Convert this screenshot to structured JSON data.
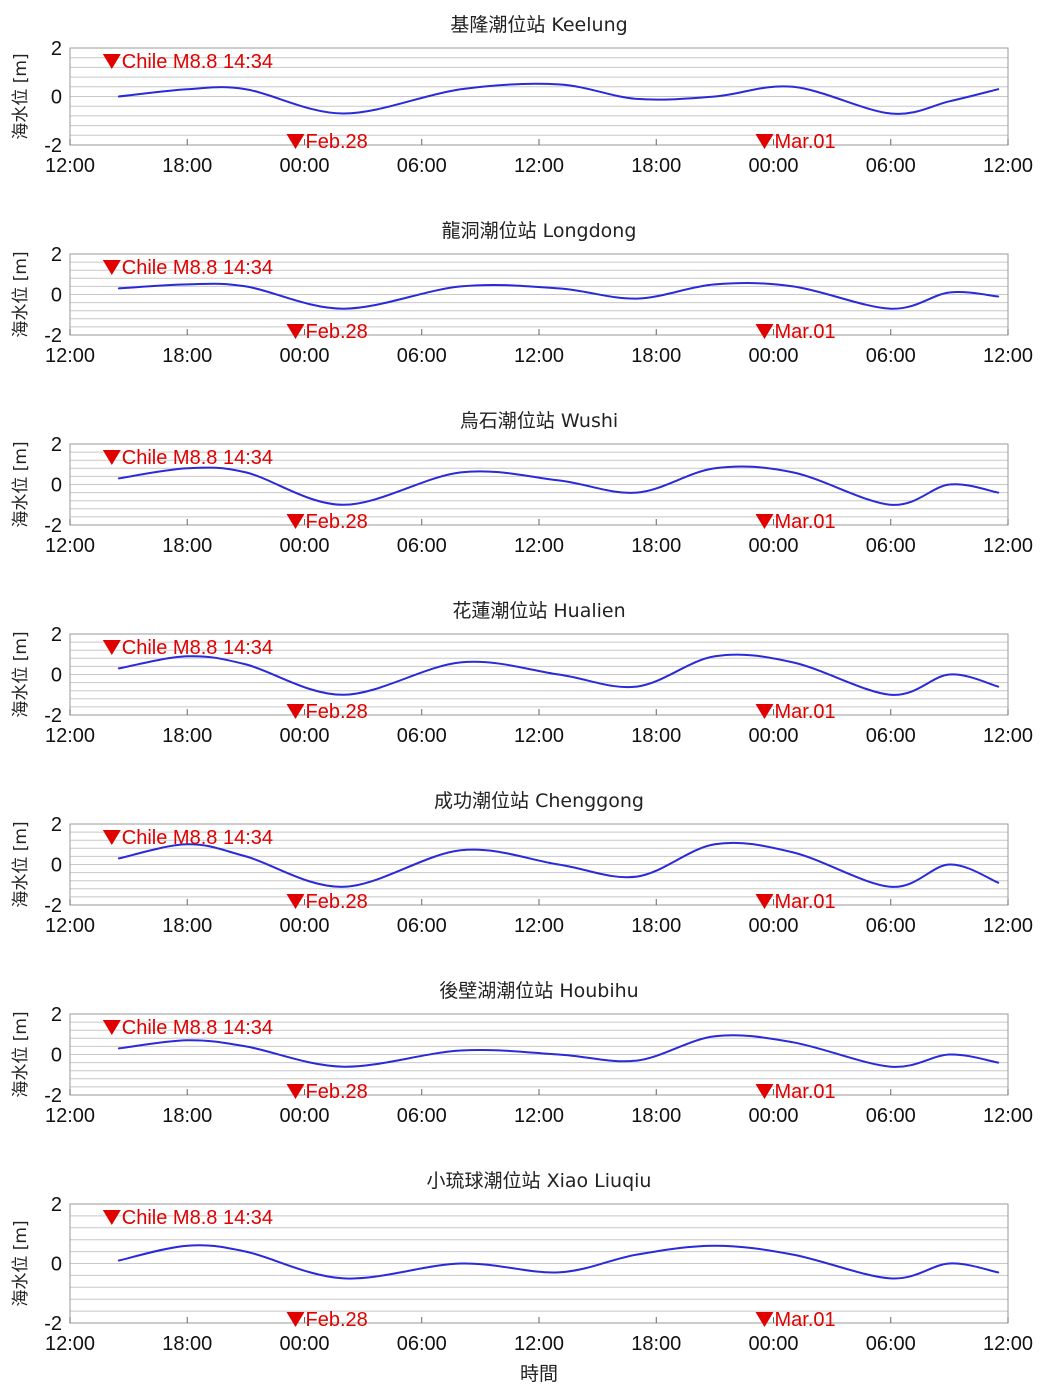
{
  "chart_data": {
    "type": "line",
    "x_tick_labels": [
      "12:00",
      "18:00",
      "00:00",
      "06:00",
      "12:00",
      "18:00",
      "00:00",
      "06:00",
      "12:00"
    ],
    "y_tick_labels": [
      "2",
      "0",
      "-2"
    ],
    "xlabel": "時間",
    "ylabel": "海水位 [m]",
    "ylim": [
      -2,
      2
    ],
    "xlim_hours": [
      0,
      48
    ],
    "grid": "horizontal",
    "line_color": "#2a2ad8",
    "annotation_color": "#e00000",
    "annotations": [
      {
        "text": "Chile M8.8 14:34",
        "hour": 2.6,
        "position": "top"
      },
      {
        "text": "Feb.28",
        "hour": 12.0,
        "position": "bottom"
      },
      {
        "text": "Mar.01",
        "hour": 36.0,
        "position": "bottom"
      }
    ],
    "panels": [
      {
        "title": "基隆潮位站 Keelung",
        "x": [
          2.5,
          6,
          9,
          14,
          20,
          25,
          29,
          33,
          37,
          42,
          45,
          47.5
        ],
        "y": [
          0.0,
          0.3,
          0.3,
          -0.7,
          0.3,
          0.5,
          -0.1,
          0.0,
          0.4,
          -0.7,
          -0.2,
          0.3
        ]
      },
      {
        "title": "龍洞潮位站 Longdong",
        "x": [
          2.5,
          6,
          9,
          14,
          20,
          25,
          29,
          33,
          37,
          42,
          45,
          47.5
        ],
        "y": [
          0.3,
          0.5,
          0.4,
          -0.7,
          0.4,
          0.3,
          -0.2,
          0.5,
          0.4,
          -0.7,
          0.1,
          -0.1
        ]
      },
      {
        "title": "烏石潮位站 Wushi",
        "x": [
          2.5,
          6,
          9,
          14,
          20,
          25,
          29,
          33,
          37,
          42,
          45,
          47.5
        ],
        "y": [
          0.3,
          0.8,
          0.6,
          -1.0,
          0.6,
          0.2,
          -0.4,
          0.8,
          0.6,
          -1.0,
          0.0,
          -0.4
        ]
      },
      {
        "title": "花蓮潮位站 Hualien",
        "x": [
          2.5,
          6,
          9,
          14,
          20,
          25,
          29,
          33,
          37,
          42,
          45,
          47.5
        ],
        "y": [
          0.3,
          0.9,
          0.5,
          -1.0,
          0.6,
          0.0,
          -0.6,
          0.9,
          0.6,
          -1.0,
          0.0,
          -0.6
        ]
      },
      {
        "title": "成功潮位站 Chenggong",
        "x": [
          2.5,
          6,
          9,
          14,
          20,
          25,
          29,
          33,
          37,
          42,
          45,
          47.5
        ],
        "y": [
          0.3,
          1.0,
          0.4,
          -1.1,
          0.7,
          0.0,
          -0.6,
          1.0,
          0.6,
          -1.1,
          0.0,
          -0.9
        ]
      },
      {
        "title": "後壁湖潮位站 Houbihu",
        "x": [
          2.5,
          6,
          9,
          14,
          20,
          25,
          29,
          33,
          37,
          42,
          45,
          47.5
        ],
        "y": [
          0.3,
          0.7,
          0.4,
          -0.6,
          0.2,
          0.0,
          -0.3,
          0.9,
          0.6,
          -0.6,
          0.0,
          -0.4
        ]
      },
      {
        "title": "小琉球潮位站 Xiao Liuqiu",
        "x": [
          2.5,
          6,
          9,
          14,
          20,
          25,
          29,
          33,
          37,
          42,
          45,
          47.5
        ],
        "y": [
          0.1,
          0.6,
          0.4,
          -0.5,
          0.0,
          -0.3,
          0.3,
          0.6,
          0.3,
          -0.5,
          0.0,
          -0.3
        ]
      }
    ]
  }
}
